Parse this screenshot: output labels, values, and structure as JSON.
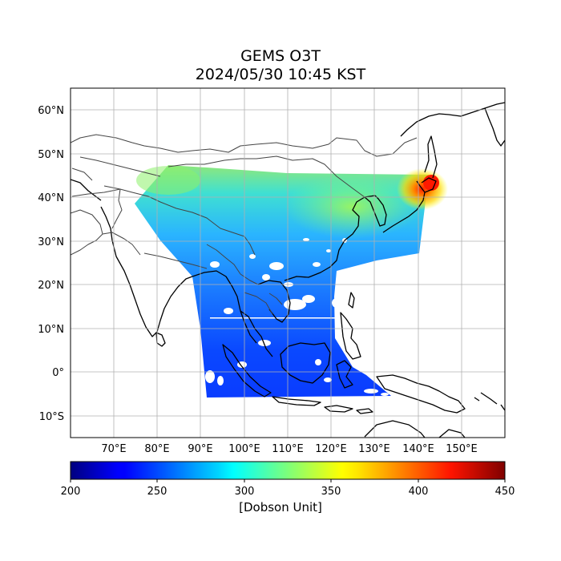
{
  "title": {
    "line1": "GEMS O3T",
    "line2": "2024/05/30 10:45 KST"
  },
  "map": {
    "projection": "PlateCarree",
    "lon_range": [
      60,
      160
    ],
    "lat_range": [
      -15,
      65
    ],
    "grid": true,
    "lon_ticks": [
      {
        "value": 70,
        "label": "70°E"
      },
      {
        "value": 80,
        "label": "80°E"
      },
      {
        "value": 90,
        "label": "90°E"
      },
      {
        "value": 100,
        "label": "100°E"
      },
      {
        "value": 110,
        "label": "110°E"
      },
      {
        "value": 120,
        "label": "120°E"
      },
      {
        "value": 130,
        "label": "130°E"
      },
      {
        "value": 140,
        "label": "140°E"
      },
      {
        "value": 150,
        "label": "150°E"
      }
    ],
    "lat_ticks": [
      {
        "value": 60,
        "label": "60°N"
      },
      {
        "value": 50,
        "label": "50°N"
      },
      {
        "value": 40,
        "label": "40°N"
      },
      {
        "value": 30,
        "label": "30°N"
      },
      {
        "value": 20,
        "label": "20°N"
      },
      {
        "value": 10,
        "label": "10°N"
      },
      {
        "value": 0,
        "label": "0°"
      },
      {
        "value": -10,
        "label": "10°S"
      }
    ]
  },
  "colorbar": {
    "colormap": "jet",
    "min": 200,
    "max": 450,
    "ticks": [
      "200",
      "250",
      "300",
      "350",
      "400",
      "450"
    ],
    "label": "[Dobson Unit]"
  }
}
